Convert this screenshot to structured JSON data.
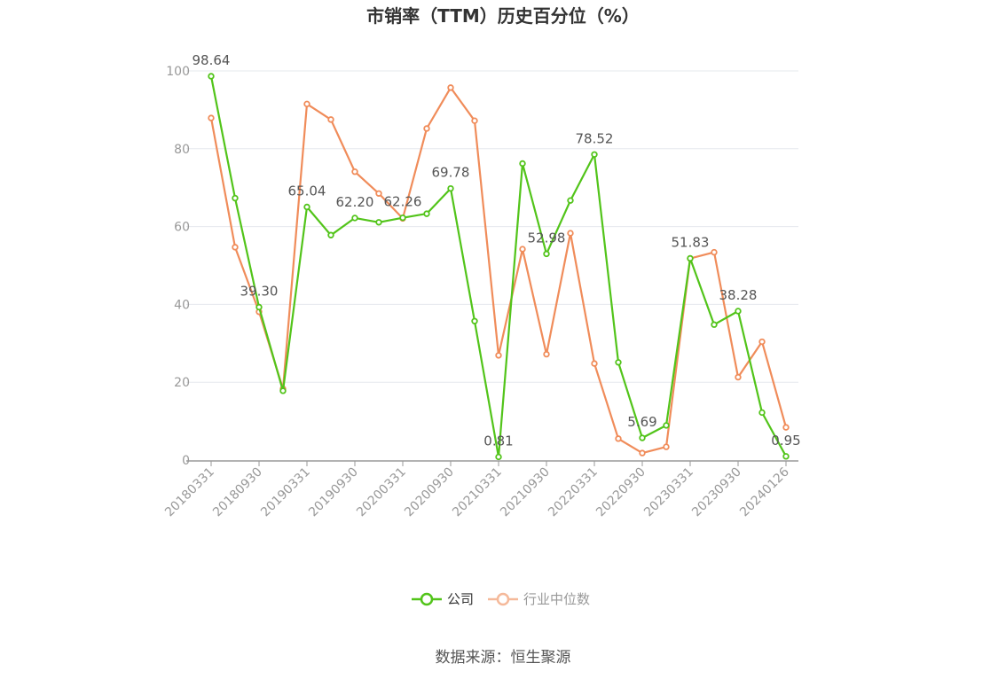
{
  "chart_data": {
    "type": "line",
    "title": "市销率（TTM）历史百分位（%）",
    "ylim": [
      0,
      100
    ],
    "yticks": [
      0,
      20,
      40,
      60,
      80,
      100
    ],
    "grid": true,
    "legend_position": "bottom-center",
    "x": [
      "20180331",
      "20180630",
      "20180930",
      "20181231",
      "20190331",
      "20190630",
      "20190930",
      "20191231",
      "20200331",
      "20200630",
      "20200930",
      "20201231",
      "20210331",
      "20210630",
      "20210930",
      "20211231",
      "20220331",
      "20220630",
      "20220930",
      "20221231",
      "20230331",
      "20230630",
      "20230930",
      "20231231",
      "20240126"
    ],
    "xtick_labels": [
      "20180331",
      "20180930",
      "20190331",
      "20190930",
      "20200331",
      "20200930",
      "20210331",
      "20210930",
      "20220331",
      "20220930",
      "20230331",
      "20230930",
      "20240126"
    ],
    "series": [
      {
        "name": "公司",
        "color": "#52c41a",
        "values": [
          98.64,
          67.3,
          39.3,
          17.8,
          65.04,
          57.8,
          62.2,
          61.1,
          62.26,
          63.3,
          69.78,
          35.7,
          0.81,
          76.2,
          52.98,
          66.7,
          78.52,
          25.1,
          5.69,
          8.9,
          51.83,
          34.8,
          38.28,
          12.2,
          0.95
        ],
        "labels": {
          "0": "98.64",
          "2": "39.30",
          "4": "65.04",
          "6": "62.20",
          "8": "62.26",
          "10": "69.78",
          "12": "0.81",
          "14": "52.98",
          "16": "78.52",
          "18": "5.69",
          "20": "51.83",
          "22": "38.28",
          "24": "0.95"
        }
      },
      {
        "name": "行业中位数",
        "color": "#f08c5a",
        "values": [
          87.9,
          54.7,
          38.1,
          18.3,
          91.5,
          87.5,
          74.1,
          68.5,
          62.1,
          85.2,
          95.7,
          87.2,
          26.9,
          54.2,
          27.2,
          58.3,
          24.8,
          5.5,
          1.8,
          3.4,
          51.8,
          53.4,
          21.3,
          30.4,
          8.4
        ]
      }
    ]
  },
  "source": "数据来源：恒生聚源"
}
